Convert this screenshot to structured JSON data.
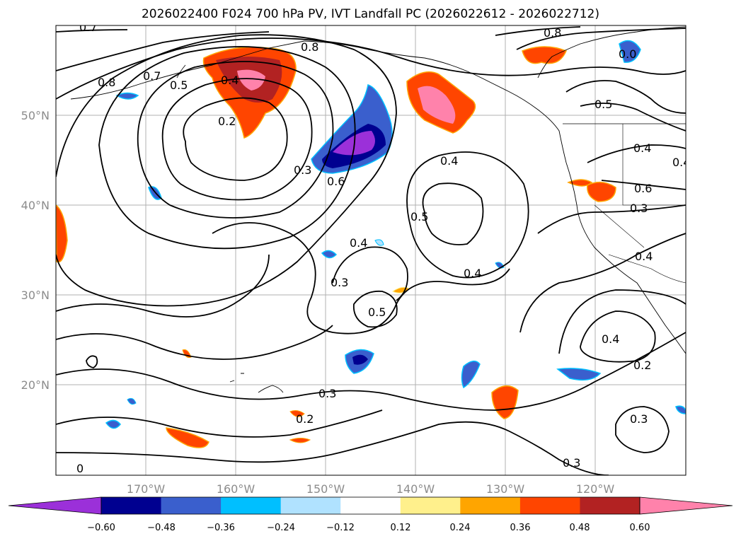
{
  "title": "2026022400 F024 700 hPa PV, IVT Landfall PC (2026022612 - 2026022712)",
  "lat_labels": [
    "50°N",
    "40°N",
    "30°N",
    "20°N"
  ],
  "lon_labels": [
    "170°W",
    "160°W",
    "150°W",
    "140°W",
    "130°W",
    "120°W"
  ],
  "contour_labels": [
    "0.7",
    "0.8",
    "0.8",
    "0.7",
    "0.5",
    "0.4",
    "0.2",
    "0.3",
    "0.6",
    "0.4",
    "0.5",
    "0.4",
    "0.3",
    "0.5",
    "0.4",
    "0.3",
    "0.2",
    "0.8",
    "0.0",
    "0.5",
    "0.4",
    "0.4",
    "0.6",
    "0.3",
    "0.4",
    "0.4",
    "0.2",
    "0.3",
    "0.3",
    "0"
  ],
  "colorbar": {
    "ticks": [
      "−0.60",
      "−0.48",
      "−0.36",
      "−0.24",
      "−0.12",
      "0.12",
      "0.24",
      "0.36",
      "0.48",
      "0.60"
    ],
    "colors": [
      "#9b30d9",
      "#000090",
      "#3a5fcd",
      "#00bfff",
      "#b0e2ff",
      "#ffffff",
      "#fff08c",
      "#ffa500",
      "#ff4500",
      "#b22222",
      "#ff82ab"
    ]
  }
}
